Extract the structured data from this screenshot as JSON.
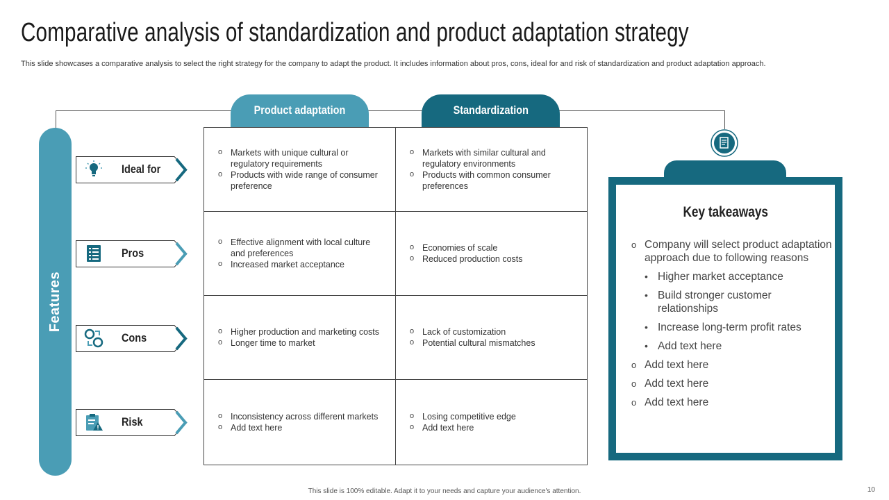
{
  "title": "Comparative analysis of standardization and product adaptation strategy",
  "subtitle": "This slide showcases a comparative analysis to select the right strategy for the company to adapt the product. It includes information about pros, cons, ideal for and risk of standardization and product adaptation approach.",
  "features_label": "Features",
  "columns": {
    "product_adaptation": "Product adaptation",
    "standardization": "Standardization"
  },
  "rows": [
    {
      "label": "Ideal for",
      "icon": "lightbulb-icon",
      "product_adaptation": [
        "Markets with unique cultural or regulatory requirements",
        "Products with wide range of consumer preference"
      ],
      "standardization": [
        "Markets with similar cultural and regulatory environments",
        "Products with common consumer preferences"
      ]
    },
    {
      "label": "Pros",
      "icon": "checklist-icon",
      "product_adaptation": [
        "Effective alignment with local culture and preferences",
        "Increased market acceptance"
      ],
      "standardization": [
        "Economies of scale",
        "Reduced production costs"
      ]
    },
    {
      "label": "Cons",
      "icon": "exchange-icon",
      "product_adaptation": [
        "Higher production and marketing costs",
        "Longer time to market"
      ],
      "standardization": [
        "Lack of customization",
        "Potential cultural mismatches"
      ]
    },
    {
      "label": "Risk",
      "icon": "clipboard-warning-icon",
      "product_adaptation": [
        "Inconsistency across different markets",
        "Add text here"
      ],
      "standardization": [
        "Losing competitive edge",
        "Add text here"
      ]
    }
  ],
  "key_takeaways": {
    "title": "Key takeaways",
    "icon": "document-icon",
    "items": [
      {
        "type": "main",
        "text": "Company will select product adaptation approach due to following reasons"
      },
      {
        "type": "sub",
        "text": "Higher market acceptance"
      },
      {
        "type": "sub",
        "text": "Build stronger customer relationships"
      },
      {
        "type": "sub",
        "text": "Increase long-term profit rates"
      },
      {
        "type": "sub",
        "text": "Add text here"
      },
      {
        "type": "main",
        "text": "Add text here"
      },
      {
        "type": "main",
        "text": "Add text here"
      },
      {
        "type": "main",
        "text": "Add text here"
      }
    ]
  },
  "colors": {
    "light_teal": "#4a9db5",
    "dark_teal": "#16697f"
  },
  "footer": "This slide is 100% editable. Adapt it to your needs and capture your audience's attention.",
  "page_number": "10"
}
